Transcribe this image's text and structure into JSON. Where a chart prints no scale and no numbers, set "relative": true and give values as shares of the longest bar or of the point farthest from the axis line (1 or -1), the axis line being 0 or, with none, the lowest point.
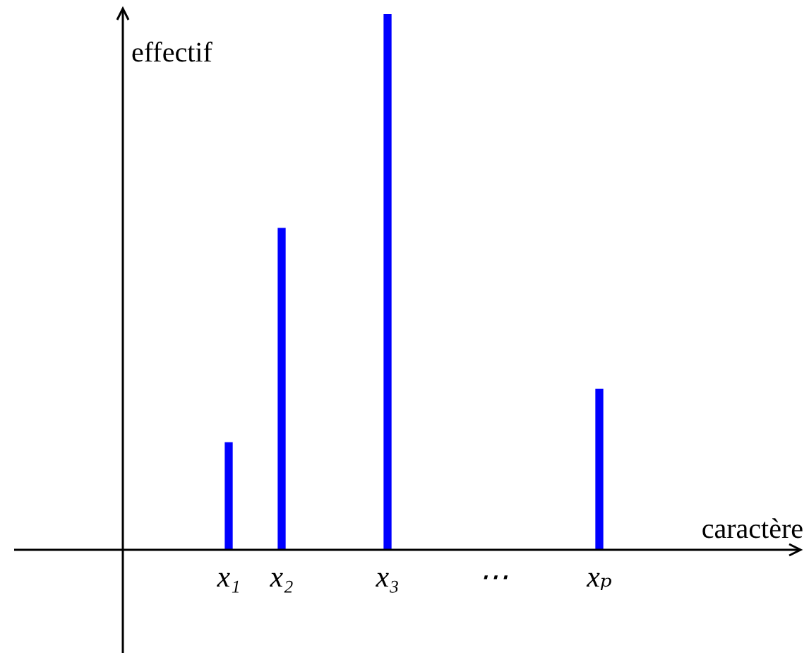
{
  "chart_data": {
    "type": "bar",
    "relative": true,
    "xlabel": "caractère",
    "ylabel": "effectif",
    "categories": [
      null,
      "x₁",
      "x₂",
      null,
      "x₃",
      null,
      "⋯",
      null,
      "xₚ",
      null,
      null,
      null
    ],
    "values": [
      null,
      0.2,
      0.6,
      null,
      1,
      null,
      null,
      null,
      0.3,
      null,
      null,
      null
    ],
    "color": "#0000ff"
  }
}
